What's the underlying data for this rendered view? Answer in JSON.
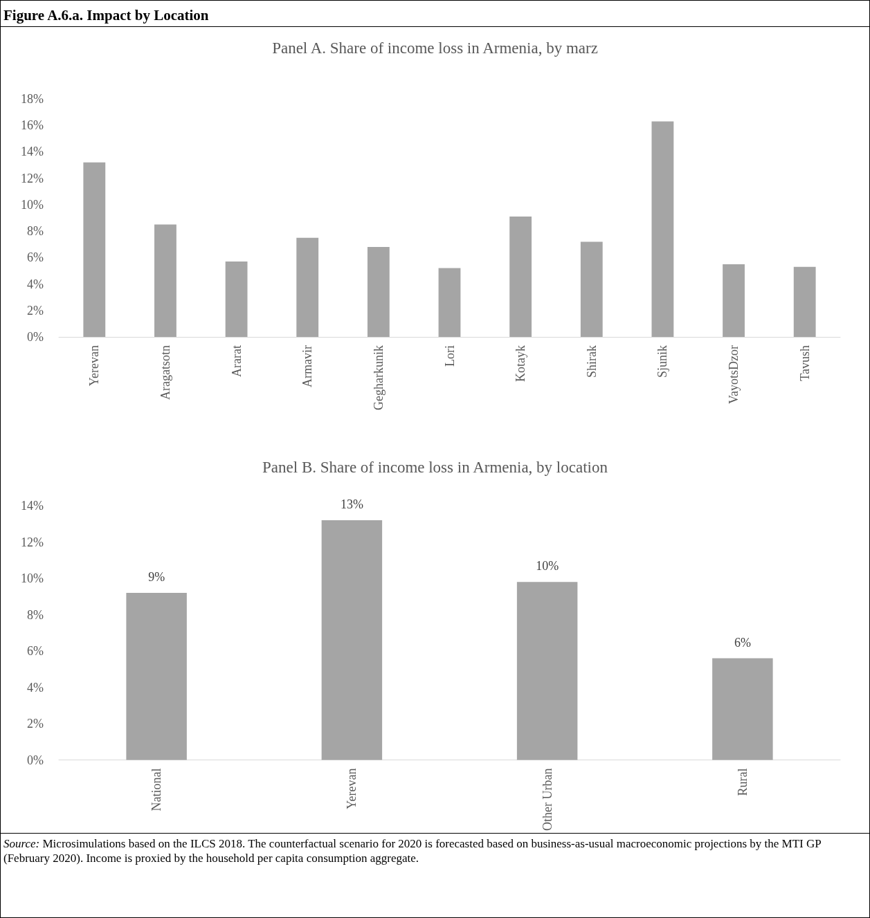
{
  "chart_data": [
    {
      "type": "other",
      "title": "Figure A.6.a. Impact by Location"
    },
    {
      "type": "bar",
      "title": "Panel A. Share of income loss in Armenia, by marz",
      "categories": [
        "Yerevan",
        "Aragatsotn",
        "Ararat",
        "Armavir",
        "Gegharkunik",
        "Lori",
        "Kotayk",
        "Shirak",
        "Sjunik",
        "VayotsDzor",
        "Tavush"
      ],
      "values": [
        13.2,
        8.5,
        5.7,
        7.5,
        6.8,
        5.2,
        9.1,
        7.2,
        16.3,
        5.5,
        5.3
      ],
      "color": "#a5a5a5",
      "ylim": [
        0,
        18
      ],
      "yticks": [
        {
          "value": 0,
          "label": "0%"
        },
        {
          "value": 2,
          "label": "2%"
        },
        {
          "value": 4,
          "label": "4%"
        },
        {
          "value": 6,
          "label": "6%"
        },
        {
          "value": 8,
          "label": "8%"
        },
        {
          "value": 10,
          "label": "10%"
        },
        {
          "value": 12,
          "label": "12%"
        },
        {
          "value": 14,
          "label": "14%"
        },
        {
          "value": 16,
          "label": "16%"
        },
        {
          "value": 18,
          "label": "18%"
        }
      ],
      "grid": false
    },
    {
      "type": "bar",
      "title": "Panel B. Share of income loss in Armenia, by location",
      "categories": [
        "National",
        "Yerevan",
        "Other Urban",
        "Rural"
      ],
      "values": [
        9.2,
        13.2,
        9.8,
        5.6
      ],
      "color": "#a5a5a5",
      "value_labels": [
        "9%",
        "13%",
        "10%",
        "6%"
      ],
      "ylim": [
        0,
        14
      ],
      "yticks": [
        {
          "value": 0,
          "label": "0%"
        },
        {
          "value": 2,
          "label": "2%"
        },
        {
          "value": 4,
          "label": "4%"
        },
        {
          "value": 6,
          "label": "6%"
        },
        {
          "value": 8,
          "label": "8%"
        },
        {
          "value": 10,
          "label": "10%"
        },
        {
          "value": 12,
          "label": "12%"
        },
        {
          "value": 14,
          "label": "14%"
        }
      ],
      "grid": false
    },
    {
      "type": "other",
      "annotations": [
        "Source: Microsimulations based on the ILCS 2018. The counterfactual scenario for 2020 is forecasted based on business-as-usual macroeconomic projections by the MTI GP (February 2020). Income is proxied by the household per capita consumption aggregate."
      ]
    }
  ]
}
